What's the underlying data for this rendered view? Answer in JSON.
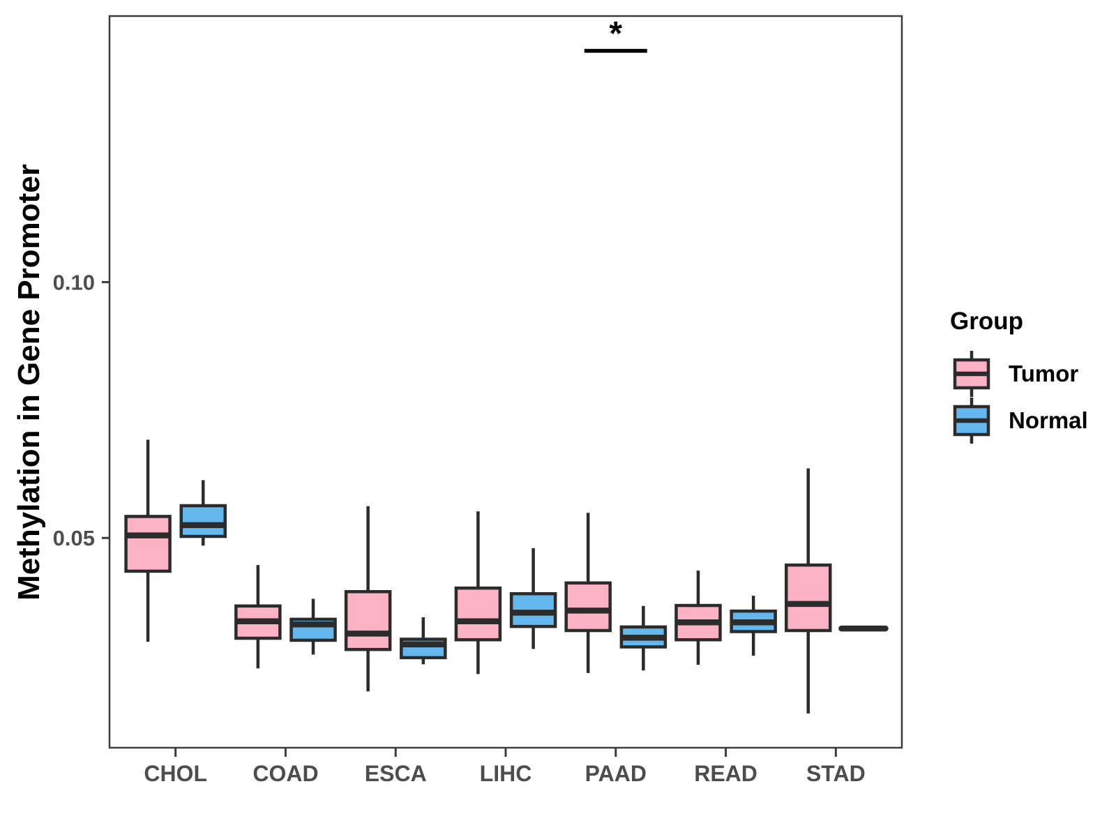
{
  "figure": {
    "background": "#FFFFFF"
  },
  "legend": {
    "title": "Group",
    "items": [
      {
        "label": "Tumor",
        "color": "#FAB2C4"
      },
      {
        "label": "Normal",
        "color": "#64B8EE"
      }
    ]
  },
  "chart_data": {
    "type": "boxplot",
    "title": "",
    "xlabel": "",
    "ylabel": "Methylation in Gene Promoter",
    "categories": [
      "CHOL",
      "COAD",
      "ESCA",
      "LIHC",
      "PAAD",
      "READ",
      "STAD"
    ],
    "groups": [
      "Tumor",
      "Normal"
    ],
    "ylim": [
      0.009,
      0.152
    ],
    "yticks": [
      {
        "value": 0.05,
        "label": "0.05"
      },
      {
        "value": 0.1,
        "label": "0.10"
      }
    ],
    "grid": false,
    "legend_position": "right",
    "colors": {
      "Tumor": "#FAB2C4",
      "Normal": "#64B8EE",
      "stroke": "#2B2B2B",
      "axis_text": "#4D4D4D",
      "frame": "#3C3C3C",
      "significance": "#000000"
    },
    "series": [
      {
        "name": "Tumor",
        "boxes": [
          {
            "category": "CHOL",
            "low": 0.0297,
            "q1": 0.0435,
            "median": 0.0505,
            "q3": 0.0542,
            "high": 0.0692
          },
          {
            "category": "COAD",
            "low": 0.0245,
            "q1": 0.0304,
            "median": 0.0337,
            "q3": 0.0367,
            "high": 0.0447
          },
          {
            "category": "ESCA",
            "low": 0.02,
            "q1": 0.0282,
            "median": 0.0313,
            "q3": 0.0395,
            "high": 0.0562
          },
          {
            "category": "LIHC",
            "low": 0.0234,
            "q1": 0.0301,
            "median": 0.0337,
            "q3": 0.0402,
            "high": 0.0552
          },
          {
            "category": "PAAD",
            "low": 0.0236,
            "q1": 0.0319,
            "median": 0.0358,
            "q3": 0.0412,
            "high": 0.0549
          },
          {
            "category": "READ",
            "low": 0.0252,
            "q1": 0.0301,
            "median": 0.0335,
            "q3": 0.0368,
            "high": 0.0436
          },
          {
            "category": "STAD",
            "low": 0.0157,
            "q1": 0.0319,
            "median": 0.0371,
            "q3": 0.0447,
            "high": 0.0636
          }
        ]
      },
      {
        "name": "Normal",
        "boxes": [
          {
            "category": "CHOL",
            "low": 0.0485,
            "q1": 0.0503,
            "median": 0.0525,
            "q3": 0.0563,
            "high": 0.0613
          },
          {
            "category": "COAD",
            "low": 0.0272,
            "q1": 0.03,
            "median": 0.0331,
            "q3": 0.0341,
            "high": 0.0381
          },
          {
            "category": "ESCA",
            "low": 0.0253,
            "q1": 0.0266,
            "median": 0.0292,
            "q3": 0.0302,
            "high": 0.0345
          },
          {
            "category": "LIHC",
            "low": 0.0283,
            "q1": 0.0327,
            "median": 0.0354,
            "q3": 0.0391,
            "high": 0.048
          },
          {
            "category": "PAAD",
            "low": 0.0241,
            "q1": 0.0287,
            "median": 0.0305,
            "q3": 0.0326,
            "high": 0.0367
          },
          {
            "category": "READ",
            "low": 0.027,
            "q1": 0.0317,
            "median": 0.0335,
            "q3": 0.0357,
            "high": 0.0387
          },
          {
            "category": "STAD",
            "low": 0.0323,
            "q1": 0.0323,
            "median": 0.0323,
            "q3": 0.0323,
            "high": 0.0323
          }
        ]
      }
    ],
    "significance": [
      {
        "category": "PAAD",
        "label": "*",
        "y_value": 0.1452
      }
    ]
  }
}
